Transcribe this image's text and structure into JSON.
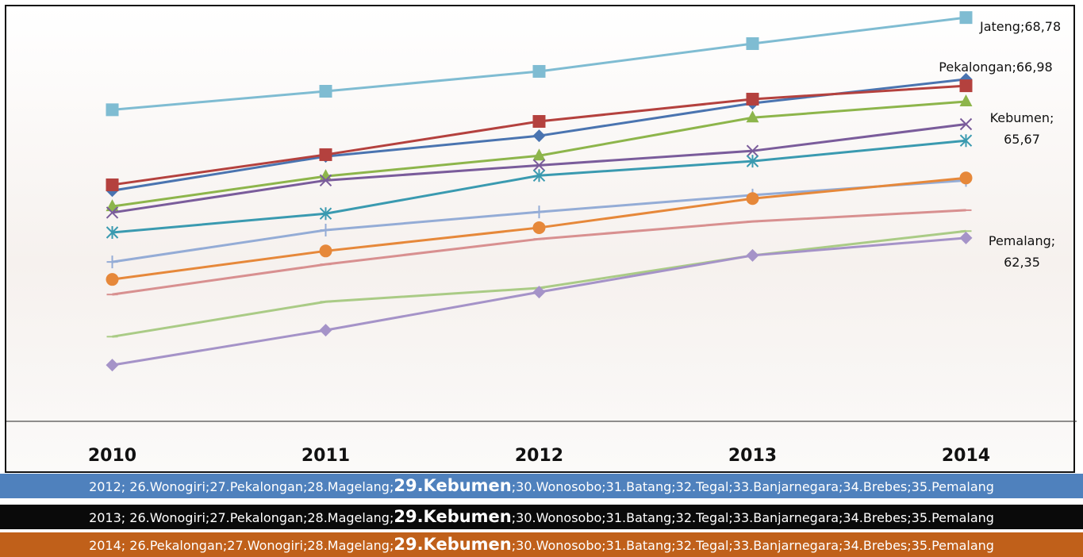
{
  "chart_data": {
    "type": "line",
    "categories": [
      "2010",
      "2011",
      "2012",
      "2013",
      "2014"
    ],
    "ylim": [
      57,
      69.2
    ],
    "series": [
      {
        "color": "#7fbcd2",
        "marker": "square",
        "values": [
          66.09,
          66.63,
          67.21,
          68.02,
          68.78
        ],
        "value_labels": [
          null,
          null,
          null,
          null,
          "Jateng;68,78"
        ]
      },
      {
        "color": "#4a74b0",
        "marker": "diamond",
        "values": [
          63.73,
          64.73,
          65.33,
          66.28,
          66.98
        ],
        "value_labels": [
          null,
          null,
          null,
          null,
          "Pekalongan;66,98"
        ]
      },
      {
        "color": "#b4413e",
        "marker": "square",
        "values": [
          63.9,
          64.78,
          65.75,
          66.4,
          66.79
        ]
      },
      {
        "color": "#8db54b",
        "marker": "triangle",
        "values": [
          63.27,
          64.15,
          64.75,
          65.86,
          66.33
        ]
      },
      {
        "color": "#7a5c9b",
        "marker": "x",
        "values": [
          63.09,
          64.03,
          64.47,
          64.89,
          65.67
        ],
        "value_labels": [
          null,
          null,
          null,
          null,
          "Kebumen;\n65,67"
        ]
      },
      {
        "color": "#3a9ab0",
        "marker": "star",
        "values": [
          62.51,
          63.06,
          64.17,
          64.59,
          65.19
        ]
      },
      {
        "color": "#94acd6",
        "marker": "plus",
        "values": [
          61.65,
          62.58,
          63.11,
          63.6,
          64.03
        ]
      },
      {
        "color": "#e6883a",
        "marker": "circle",
        "values": [
          61.14,
          61.97,
          62.65,
          63.5,
          64.1
        ]
      },
      {
        "color": "#d89090",
        "marker": "dash",
        "values": [
          60.7,
          61.58,
          62.32,
          62.83,
          63.16
        ]
      },
      {
        "color": "#aacb86",
        "marker": "dash",
        "values": [
          59.47,
          60.49,
          60.89,
          61.84,
          62.55
        ]
      },
      {
        "color": "#a593c8",
        "marker": "diamond",
        "values": [
          58.64,
          59.66,
          60.77,
          61.84,
          62.35
        ],
        "value_labels": [
          null,
          null,
          null,
          null,
          "Pemalang;\n62,35"
        ]
      }
    ]
  },
  "banners": [
    {
      "color": "#4f81bd",
      "text": "#ffffff",
      "parts": [
        "2012; 26.Wonogiri;27.Pekalongan;28.Magelang;",
        "29.Kebumen",
        ";30.Wonosobo;31.Batang;32.Tegal;33.Banjarnegara;34.Brebes;35.Pemalang"
      ]
    },
    {
      "color": "#0a0a0a",
      "text": "#ffffff",
      "parts": [
        "2013; 26.Wonogiri;27.Pekalongan;28.Magelang;",
        "29.Kebumen",
        ";30.Wonosobo;31.Batang;32.Tegal;33.Banjarnegara;34.Brebes;35.Pemalang"
      ]
    },
    {
      "color": "#c0601a",
      "text": "#ffffff",
      "parts": [
        "2014; 26.Pekalongan;27.Wonogiri;28.Magelang;",
        "29.Kebumen",
        ";30.Wonosobo;31.Batang;32.Tegal;33.Banjarnegara;34.Brebes;35.Pemalang"
      ]
    }
  ]
}
